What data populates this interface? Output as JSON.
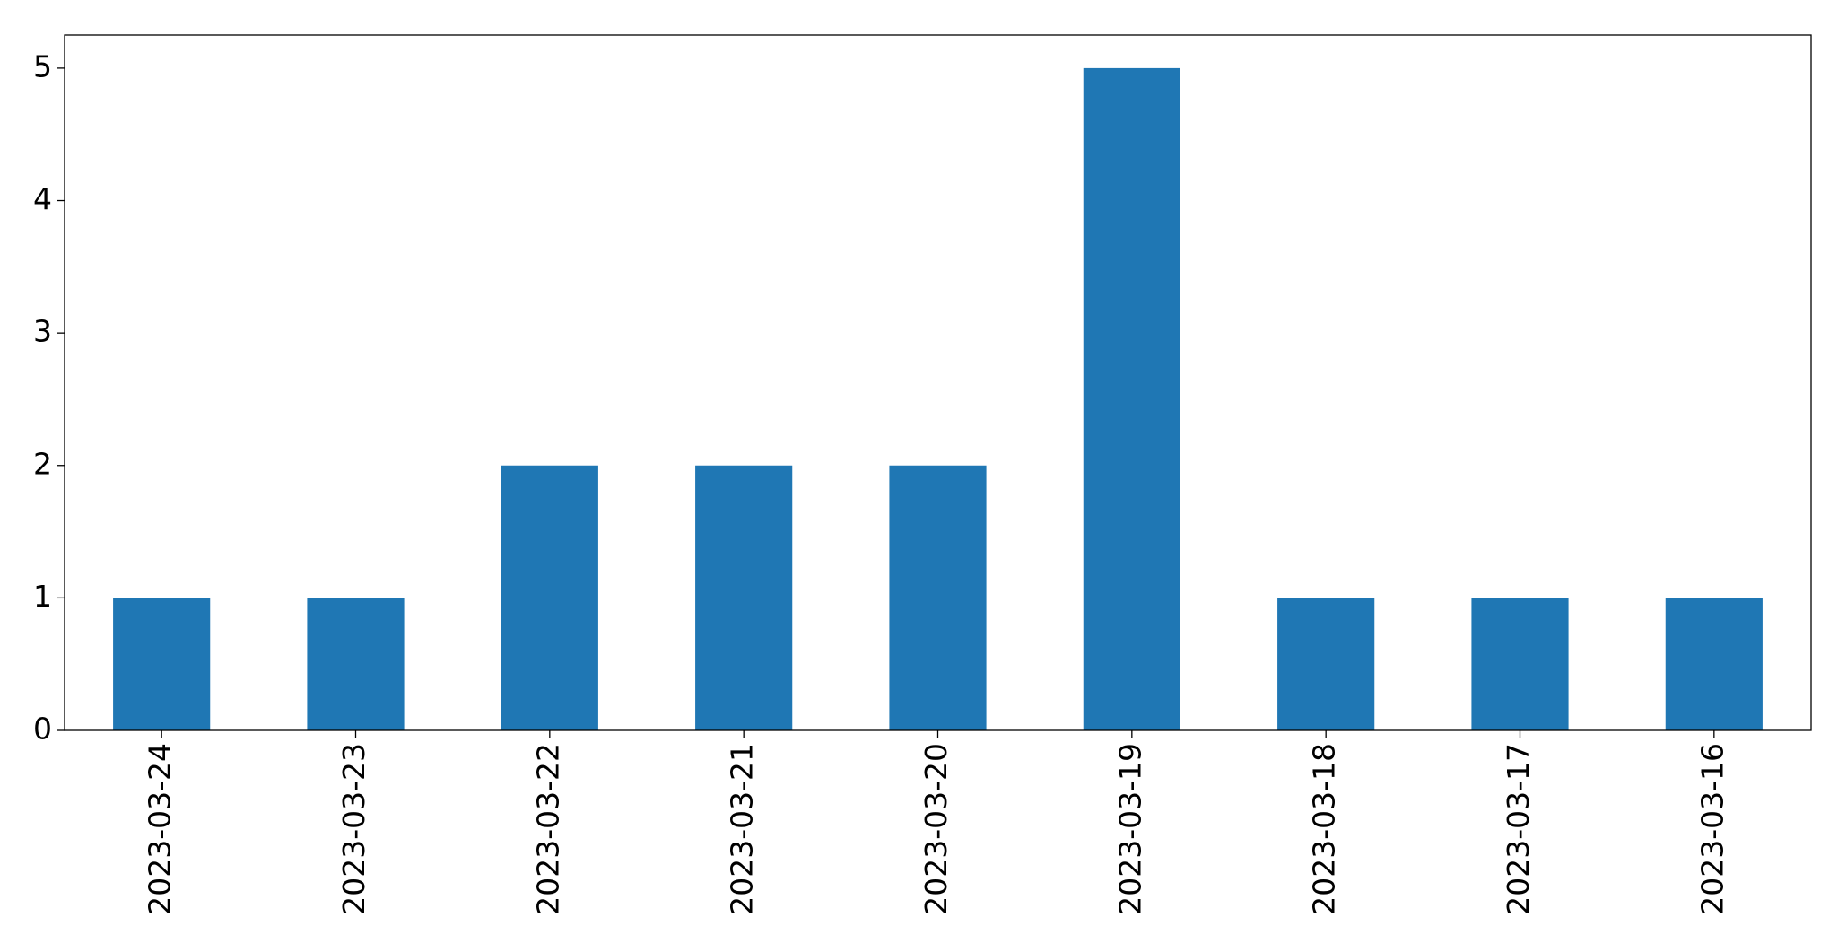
{
  "chart_data": {
    "type": "bar",
    "categories": [
      "2023-03-24",
      "2023-03-23",
      "2023-03-22",
      "2023-03-21",
      "2023-03-20",
      "2023-03-19",
      "2023-03-18",
      "2023-03-17",
      "2023-03-16"
    ],
    "values": [
      1,
      1,
      2,
      2,
      2,
      5,
      1,
      1,
      1
    ],
    "color": "#1f77b4",
    "ylim": [
      0,
      5.25
    ],
    "yticks": [
      0,
      1,
      2,
      3,
      4,
      5
    ],
    "grid": false
  }
}
